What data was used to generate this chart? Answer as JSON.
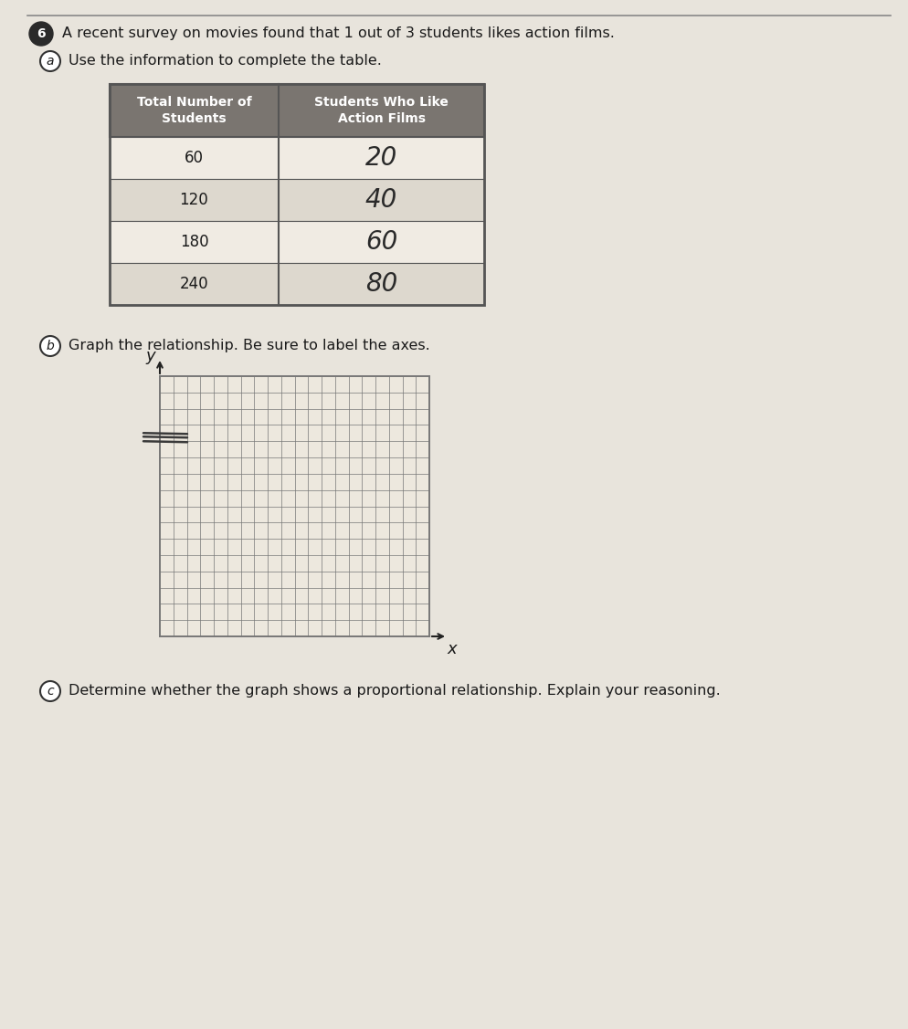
{
  "page_bg": "#e8e4dc",
  "title_number": "6",
  "problem_text": "A recent survey on movies found that 1 out of 3 students likes action films.",
  "part_a_text": "Use the information to complete the table.",
  "part_b_text": "Graph the relationship. Be sure to label the axes.",
  "part_c_text": "Determine whether the graph shows a proportional relationship. Explain your reasoning.",
  "col1_header": "Total Number of\nStudents",
  "col2_header": "Students Who Like\nAction Films",
  "table_data": [
    [
      60,
      "20"
    ],
    [
      120,
      "40"
    ],
    [
      180,
      "60"
    ],
    [
      240,
      "80"
    ]
  ],
  "grid_rows": 16,
  "grid_cols": 20,
  "x_label": "x",
  "y_label": "y",
  "header_bg": "#7a7570",
  "cell_bg_white": "#f0ebe3",
  "cell_bg_alt": "#ddd8ce",
  "table_border": "#555555",
  "grid_line_color": "#777777",
  "grid_bg": "#ede8de",
  "text_color": "#1a1a1a",
  "handwrite_color": "#2a2a2a",
  "top_line_color": "#888888"
}
